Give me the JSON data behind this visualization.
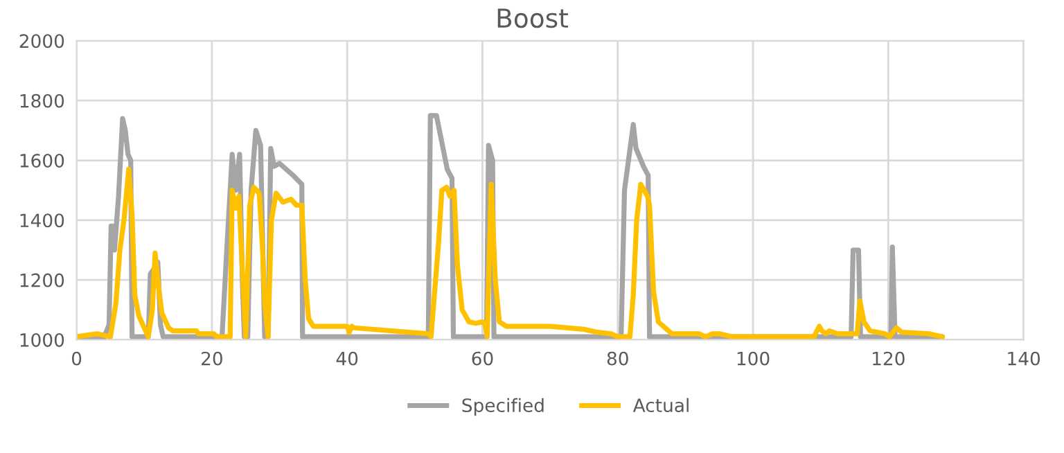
{
  "chart_data": {
    "type": "line",
    "title": "Boost",
    "xlim": [
      0,
      140
    ],
    "xticks": [
      0,
      20,
      40,
      60,
      80,
      100,
      120,
      140
    ],
    "ylim": [
      1000,
      2000
    ],
    "yticks": [
      1000,
      1200,
      1400,
      1600,
      1800,
      2000
    ],
    "grid": true,
    "legend": "bottom",
    "marker": "none",
    "line_style": "solid",
    "series": [
      {
        "name": "Specified",
        "color": "#a5a5a5",
        "x": [
          0,
          4,
          4.8,
          5.1,
          5.3,
          5.6,
          6.2,
          6.8,
          7.2,
          7.6,
          8,
          8.2,
          10.6,
          10.9,
          11.5,
          12,
          12.4,
          12.8,
          21.5,
          22.2,
          23,
          23.5,
          24.1,
          24.5,
          24.8,
          25.3,
          25.8,
          26.5,
          27.2,
          27.8,
          28.3,
          28.7,
          29.2,
          30,
          32,
          33.3,
          33.4,
          52,
          52.3,
          53.2,
          54,
          54.8,
          55.5,
          55.7,
          60.6,
          60.9,
          61.5,
          61.7,
          80.5,
          81,
          82.3,
          82.7,
          83.8,
          84.5,
          84.7,
          114.5,
          114.8,
          115.6,
          115.9,
          120.4,
          120.6,
          121,
          128
        ],
        "values": [
          1005,
          1005,
          1050,
          1380,
          1380,
          1300,
          1480,
          1740,
          1700,
          1620,
          1600,
          1010,
          1010,
          1220,
          1240,
          1260,
          1050,
          1010,
          1010,
          1300,
          1620,
          1500,
          1620,
          1200,
          1010,
          1010,
          1500,
          1700,
          1650,
          1010,
          1010,
          1640,
          1580,
          1590,
          1550,
          1520,
          1010,
          1010,
          1750,
          1750,
          1660,
          1570,
          1540,
          1010,
          1010,
          1650,
          1600,
          1010,
          1010,
          1500,
          1720,
          1640,
          1580,
          1550,
          1010,
          1010,
          1300,
          1300,
          1010,
          1010,
          1310,
          1010,
          1010
        ]
      },
      {
        "name": "Actual",
        "color": "#ffc000",
        "x": [
          0,
          3,
          5,
          5.8,
          6.4,
          7,
          7.7,
          8.2,
          8.6,
          9.2,
          10.6,
          11.2,
          11.6,
          12.1,
          12.6,
          13.6,
          14.2,
          17.7,
          18,
          20.3,
          20.7,
          22.7,
          23,
          23.5,
          24,
          24.4,
          25,
          25.6,
          26.2,
          27,
          27.5,
          27.8,
          28.3,
          28.8,
          29.5,
          30.5,
          31.7,
          32.5,
          33.3,
          33.8,
          34.3,
          35,
          40,
          40.3,
          40.7,
          41,
          52,
          52.4,
          53.5,
          54,
          54.7,
          55.2,
          55.8,
          56.3,
          57,
          58,
          59,
          60,
          60.4,
          60.7,
          61.3,
          61.9,
          62.5,
          63.5,
          70,
          75,
          77,
          79,
          80,
          81.8,
          82.3,
          82.8,
          83.4,
          84.4,
          84.7,
          85.3,
          86,
          87,
          88,
          92,
          93,
          94,
          95,
          97,
          109,
          109.8,
          110.2,
          110.8,
          111.3,
          112.5,
          115.4,
          115.8,
          116.4,
          117.3,
          119.5,
          120.2,
          121.2,
          122,
          126,
          128
        ],
        "values": [
          1010,
          1020,
          1010,
          1120,
          1300,
          1400,
          1570,
          1420,
          1150,
          1080,
          1010,
          1100,
          1290,
          1180,
          1090,
          1040,
          1030,
          1030,
          1020,
          1020,
          1010,
          1010,
          1500,
          1440,
          1480,
          1280,
          1010,
          1450,
          1510,
          1490,
          1300,
          1130,
          1010,
          1400,
          1490,
          1460,
          1470,
          1450,
          1450,
          1200,
          1070,
          1045,
          1045,
          1025,
          1045,
          1040,
          1020,
          1010,
          1320,
          1500,
          1510,
          1480,
          1500,
          1250,
          1100,
          1060,
          1055,
          1060,
          1050,
          1010,
          1520,
          1200,
          1060,
          1045,
          1045,
          1035,
          1025,
          1020,
          1010,
          1010,
          1150,
          1400,
          1520,
          1480,
          1450,
          1160,
          1060,
          1040,
          1020,
          1020,
          1010,
          1020,
          1020,
          1010,
          1010,
          1045,
          1030,
          1020,
          1030,
          1020,
          1020,
          1130,
          1060,
          1030,
          1020,
          1010,
          1040,
          1025,
          1020,
          1010
        ]
      }
    ]
  }
}
